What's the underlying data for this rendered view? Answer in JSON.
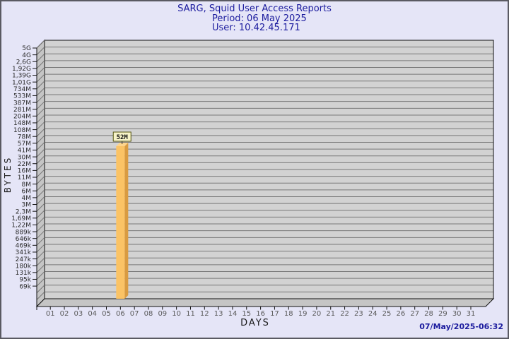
{
  "header": {
    "title": "SARG, Squid User Access Reports",
    "period_label": "Period: 06 May 2025",
    "user_label": "User: 10.42.45.171"
  },
  "footer": {
    "timestamp": "07/May/2025-06:32"
  },
  "chart_data": {
    "type": "bar",
    "title": "SARG, Squid User Access Reports",
    "subtitle": "Period: 06 May 2025 — User: 10.42.45.171",
    "xlabel": "DAYS",
    "ylabel": "BYTES",
    "y_scale": "log",
    "y_axis_range": [
      "69k",
      "5G"
    ],
    "y_tick_labels": [
      "5G",
      "4G",
      "2,6G",
      "1,92G",
      "1,39G",
      "1,01G",
      "734M",
      "533M",
      "387M",
      "281M",
      "204M",
      "148M",
      "108M",
      "78M",
      "57M",
      "41M",
      "30M",
      "22M",
      "16M",
      "11M",
      "8M",
      "6M",
      "4M",
      "3M",
      "2,3M",
      "1,69M",
      "1,22M",
      "889k",
      "646k",
      "469k",
      "341k",
      "247k",
      "180k",
      "131k",
      "95k",
      "69k"
    ],
    "x_tick_labels": [
      "01",
      "02",
      "03",
      "04",
      "05",
      "06",
      "07",
      "08",
      "09",
      "10",
      "11",
      "12",
      "13",
      "14",
      "15",
      "16",
      "17",
      "18",
      "19",
      "20",
      "21",
      "22",
      "23",
      "24",
      "25",
      "26",
      "27",
      "28",
      "29",
      "30",
      "31"
    ],
    "bars": [
      {
        "day": "06",
        "value_label": "52M",
        "value_bytes": 52000000
      }
    ],
    "grid": "horizontal",
    "legend": "none",
    "colors": {
      "accent_navy": "#1b1b9e",
      "plot_face": "#D2D2D2",
      "plot_wall": "#C5C5C5",
      "gridline": "#787878",
      "axis": "#111111",
      "y_tick_text": "#2a2a2a",
      "x_tick_text": "#5a5a5a",
      "bar_front": "#FBC365",
      "bar_side": "#D99B41",
      "bar_top": "#FDD48C",
      "value_box_bg": "#F7F3C8",
      "value_box_border": "#53530F",
      "value_box_text": "#111111"
    }
  }
}
